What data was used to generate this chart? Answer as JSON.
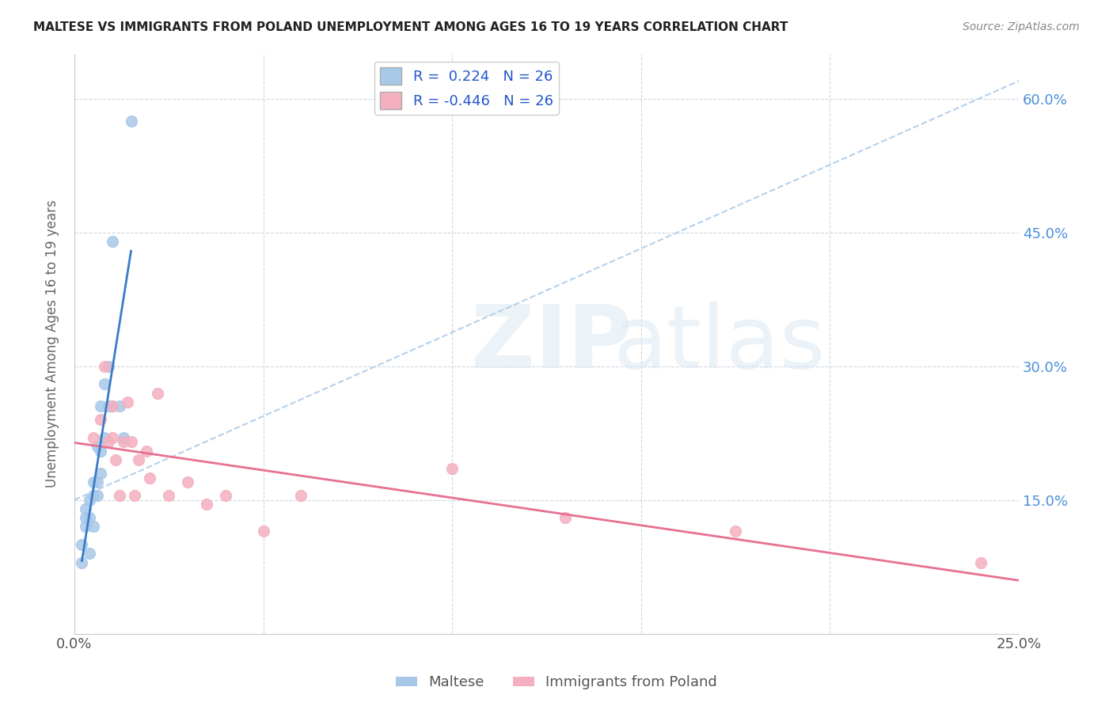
{
  "title": "MALTESE VS IMMIGRANTS FROM POLAND UNEMPLOYMENT AMONG AGES 16 TO 19 YEARS CORRELATION CHART",
  "source": "Source: ZipAtlas.com",
  "ylabel": "Unemployment Among Ages 16 to 19 years",
  "xlim": [
    0.0,
    0.25
  ],
  "ylim": [
    0.0,
    0.65
  ],
  "x_tick_positions": [
    0.0,
    0.05,
    0.1,
    0.15,
    0.2,
    0.25
  ],
  "x_tick_labels": [
    "0.0%",
    "",
    "",
    "",
    "",
    "25.0%"
  ],
  "y_tick_positions": [
    0.0,
    0.15,
    0.3,
    0.45,
    0.6
  ],
  "y_right_labels": [
    "",
    "15.0%",
    "30.0%",
    "45.0%",
    "60.0%"
  ],
  "legend_labels": [
    "Maltese",
    "Immigrants from Poland"
  ],
  "R_maltese": 0.224,
  "N_maltese": 26,
  "R_poland": -0.446,
  "N_poland": 26,
  "maltese_color": "#a8c8e8",
  "poland_color": "#f4b0c0",
  "maltese_line_color": "#3a7cc8",
  "poland_line_color": "#e87090",
  "dashed_line_color": "#b8d0e8",
  "background_color": "#ffffff",
  "maltese_x": [
    0.002,
    0.002,
    0.003,
    0.003,
    0.003,
    0.004,
    0.004,
    0.004,
    0.005,
    0.005,
    0.005,
    0.006,
    0.006,
    0.006,
    0.007,
    0.007,
    0.007,
    0.008,
    0.008,
    0.009,
    0.009,
    0.01,
    0.01,
    0.012,
    0.013,
    0.015
  ],
  "maltese_y": [
    0.08,
    0.1,
    0.12,
    0.13,
    0.14,
    0.09,
    0.13,
    0.15,
    0.12,
    0.155,
    0.17,
    0.155,
    0.17,
    0.21,
    0.18,
    0.205,
    0.255,
    0.22,
    0.28,
    0.255,
    0.3,
    0.44,
    0.255,
    0.255,
    0.22,
    0.575
  ],
  "poland_x": [
    0.005,
    0.007,
    0.008,
    0.009,
    0.01,
    0.01,
    0.011,
    0.012,
    0.013,
    0.014,
    0.015,
    0.016,
    0.017,
    0.019,
    0.02,
    0.022,
    0.025,
    0.03,
    0.035,
    0.04,
    0.05,
    0.06,
    0.1,
    0.13,
    0.175,
    0.24
  ],
  "poland_y": [
    0.22,
    0.24,
    0.3,
    0.215,
    0.255,
    0.22,
    0.195,
    0.155,
    0.215,
    0.26,
    0.215,
    0.155,
    0.195,
    0.205,
    0.175,
    0.27,
    0.155,
    0.17,
    0.145,
    0.155,
    0.115,
    0.155,
    0.185,
    0.13,
    0.115,
    0.08
  ],
  "dashed_line_x": [
    0.0,
    0.25
  ],
  "dashed_line_y": [
    0.15,
    0.62
  ]
}
